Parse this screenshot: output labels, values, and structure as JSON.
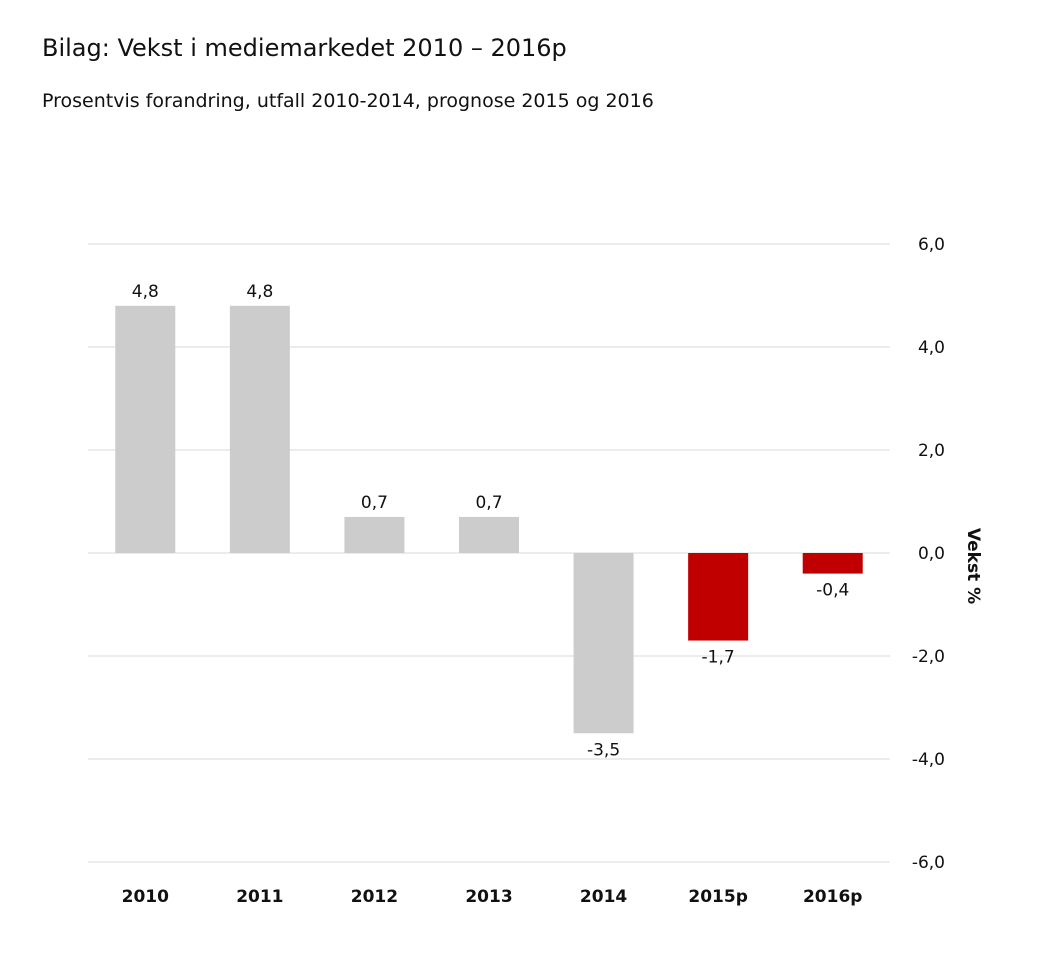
{
  "chart_data": {
    "type": "bar",
    "title": "Bilag: Vekst i mediemarkedet 2010 – 2016p",
    "subtitle": "Prosentvis forandring, utfall 2010-2014, prognose 2015 og 2016",
    "xlabel": "",
    "ylabel": "Vekst %",
    "categories": [
      "2010",
      "2011",
      "2012",
      "2013",
      "2014",
      "2015p",
      "2016p"
    ],
    "values": [
      4.8,
      4.8,
      0.7,
      0.7,
      -3.5,
      -1.7,
      -0.4
    ],
    "data_labels": [
      "4,8",
      "4,8",
      "0,7",
      "0,7",
      "-3,5",
      "-1,7",
      "-0,4"
    ],
    "ylim": [
      -6,
      6
    ],
    "yticks": [
      6,
      4,
      2,
      0,
      -2,
      -4,
      -6
    ],
    "ytick_labels": [
      "6,0",
      "4,0",
      "2,0",
      "0,0",
      "-2,0",
      "-4,0",
      "-6,0"
    ],
    "y_axis_side": "right",
    "grid": true,
    "bar_colors": [
      "#cccccc",
      "#cccccc",
      "#cccccc",
      "#cccccc",
      "#cccccc",
      "#c00000",
      "#c00000"
    ],
    "gridline_color": "#e6e6e6"
  }
}
